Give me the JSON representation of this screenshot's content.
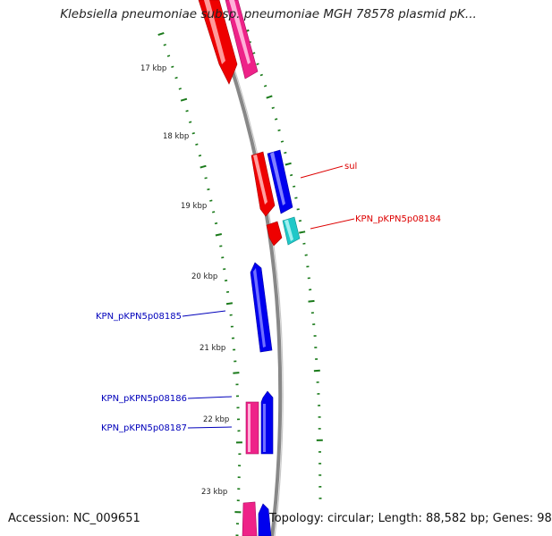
{
  "title": "Klebsiella pneumoniae subsp. pneumoniae MGH 78578 plasmid pK...",
  "footer": {
    "accession": "Accession: NC_009651",
    "summary": "Topology: circular; Length: 88,582 bp; Genes: 98"
  },
  "colors": {
    "ruler": "#1a7a1a",
    "backbone": "#8a8a8a",
    "red": "#ee0000",
    "pink": "#ee2288",
    "blue": "#0000ee",
    "cyan": "#20c8c8",
    "label_forward": "#dd0000",
    "label_reverse": "#0000bb"
  },
  "ruler_labels": [
    {
      "text": "17 kbp"
    },
    {
      "text": "18 kbp"
    },
    {
      "text": "19 kbp"
    },
    {
      "text": "20 kbp"
    },
    {
      "text": "21 kbp"
    },
    {
      "text": "22 kbp"
    },
    {
      "text": "23 kbp"
    }
  ],
  "gene_labels": [
    {
      "text": "sul",
      "strand": "forward"
    },
    {
      "text": "KPN_pKPN5p08184",
      "strand": "forward"
    },
    {
      "text": "KPN_pKPN5p08185",
      "strand": "reverse"
    },
    {
      "text": "KPN_pKPN5p08186",
      "strand": "reverse"
    },
    {
      "text": "KPN_pKPN5p08187",
      "strand": "reverse"
    }
  ]
}
